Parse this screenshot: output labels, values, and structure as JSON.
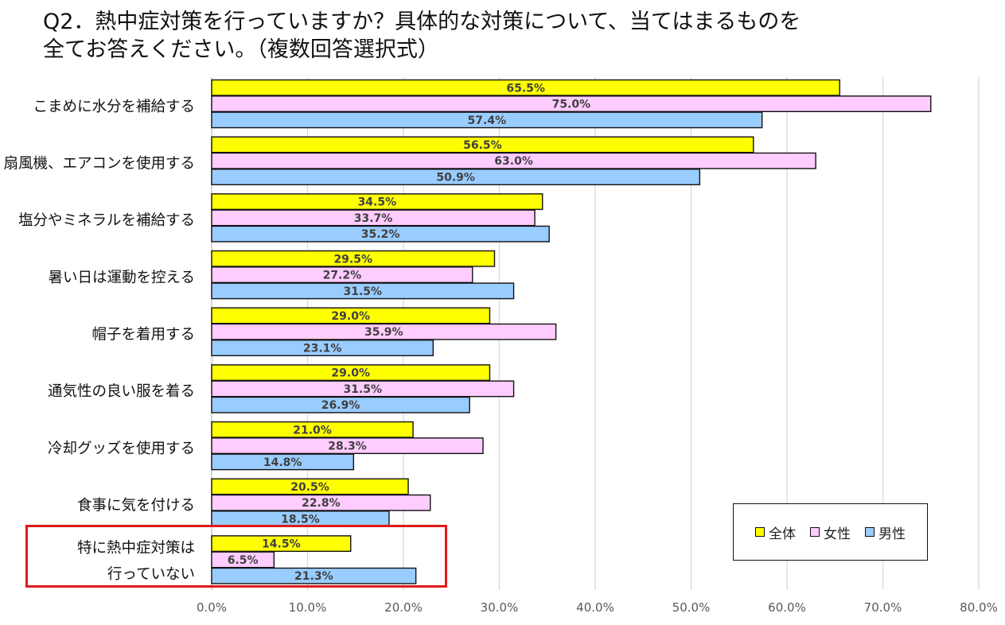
{
  "title_lines": [
    "Q2．熱中症対策を行っていますか？具体的な対策について、当てはまるものを",
    "全てお答えください。（複数回答選択式）"
  ],
  "colors": {
    "all": "#ffff00",
    "female": "#ffccff",
    "male": "#99ccff",
    "highlight": "#e01a1a"
  },
  "chart_data": {
    "type": "bar",
    "orientation": "horizontal",
    "categories": [
      [
        "こまめに水分を補給する"
      ],
      [
        "扇風機、エアコンを使用する"
      ],
      [
        "塩分やミネラルを補給する"
      ],
      [
        "暑い日は運動を控える"
      ],
      [
        "帽子を着用する"
      ],
      [
        "通気性の良い服を着る"
      ],
      [
        "冷却グッズを使用する"
      ],
      [
        "食事に気を付ける"
      ],
      [
        "特に熱中症対策は",
        "行っていない"
      ]
    ],
    "series": [
      {
        "name": "全体",
        "values": [
          65.5,
          56.5,
          34.5,
          29.5,
          29.0,
          29.0,
          21.0,
          20.5,
          14.5
        ]
      },
      {
        "name": "女性",
        "values": [
          75.0,
          63.0,
          33.7,
          27.2,
          35.9,
          31.5,
          28.3,
          22.8,
          6.5
        ]
      },
      {
        "name": "男性",
        "values": [
          57.4,
          50.9,
          35.2,
          31.5,
          23.1,
          26.9,
          14.8,
          18.5,
          21.3
        ]
      }
    ],
    "xlim": [
      0,
      80
    ],
    "ticks": [
      "0.0%",
      "10.0%",
      "20.0%",
      "30.0%",
      "40.0%",
      "50.0%",
      "60.0%",
      "70.0%",
      "80.0%"
    ],
    "tick_values": [
      0,
      10,
      20,
      30,
      40,
      50,
      60,
      70,
      80
    ],
    "grid": true,
    "legend_position": "bottom-right",
    "highlighted_category_index": 8
  },
  "legend": {
    "all": "全体",
    "female": "女性",
    "male": "男性"
  }
}
